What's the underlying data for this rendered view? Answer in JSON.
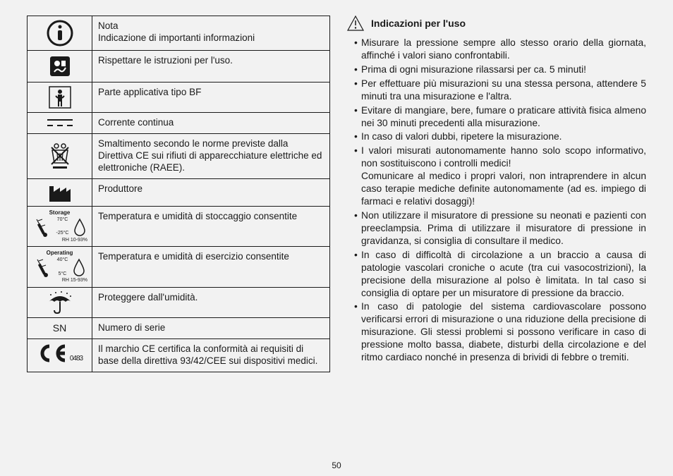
{
  "page_number": "50",
  "table": {
    "rows": [
      {
        "icon": "info",
        "text": "Nota\nIndicazione di importanti informazioni"
      },
      {
        "icon": "manual",
        "text": "Rispettare le istruzioni per l'uso."
      },
      {
        "icon": "bf",
        "text": "Parte applicativa tipo BF"
      },
      {
        "icon": "dc",
        "text": "Corrente continua"
      },
      {
        "icon": "weee",
        "text": "Smaltimento secondo le norme previste dalla Direttiva CE sui rifiuti di apparecchiature elettriche ed elettroniche (RAEE)."
      },
      {
        "icon": "factory",
        "text": "Produttore"
      },
      {
        "icon": "storage",
        "text": "Temperatura e umidità di stoccaggio consentite",
        "label": "Storage",
        "hi": "70°C",
        "lo": "-25°C",
        "rh": "RH 10-93%"
      },
      {
        "icon": "operating",
        "text": "Temperatura e umidità di esercizio consentite",
        "label": "Operating",
        "hi": "40°C",
        "lo": "5°C",
        "rh": "RH 15-93%"
      },
      {
        "icon": "umbrella",
        "text": "Proteggere dall'umidità."
      },
      {
        "icon": "sn",
        "sn_label": "SN",
        "text": "Numero di serie"
      },
      {
        "icon": "ce",
        "ce_num": "0483",
        "text": "Il marchio CE certifica la conformità ai requisiti di base della direttiva 93/42/CEE sui dispositivi medici."
      }
    ]
  },
  "heading": "Indicazioni per l'uso",
  "bullets": [
    "Misurare la pressione sempre allo stesso orario della giornata, affinché i valori siano confrontabili.",
    "Prima di ogni misurazione rilassarsi per ca. 5 minuti!",
    "Per effettuare più misurazioni su una stessa persona, attendere 5 minuti tra una misurazione e l'altra.",
    "Evitare di mangiare, bere, fumare o praticare attività fisica almeno nei 30 minuti precedenti alla misurazione.",
    "In caso di valori dubbi, ripetere la misurazione.",
    "I valori misurati autonomamente hanno solo scopo informativo, non sostituiscono i controlli medici!\nComunicare al medico i propri valori, non intraprendere in alcun caso terapie mediche definite autonomamente (ad es. impiego di farmaci e relativi dosaggi)!",
    "Non utilizzare il misuratore di pressione su neonati e pazienti con preeclampsia. Prima di utilizzare il misuratore di pressione in gravidanza, si consiglia di consultare il medico.",
    "In caso di difficoltà di circolazione a un braccio a causa di patologie vascolari croniche o acute (tra cui vasocostrizioni), la precisione della misurazione al polso è limitata. In tal caso si consiglia di optare per un misuratore di pressione da braccio.",
    "In caso di patologie del sistema cardiovascolare possono verificarsi errori di misurazione o una riduzione della precisione di misurazione. Gli stessi problemi si possono verificare in caso di pressione molto bassa, diabete, disturbi della circolazione e del ritmo cardiaco nonché in presenza di brividi di febbre o tremiti."
  ]
}
